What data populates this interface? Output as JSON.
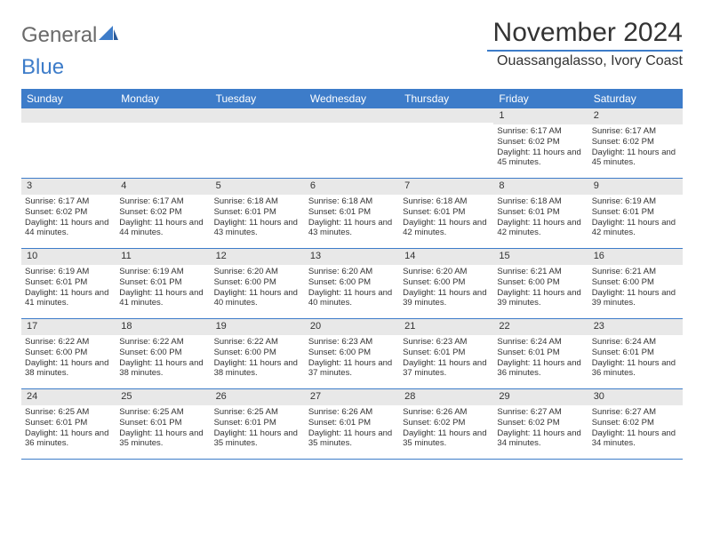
{
  "brand": {
    "part1": "General",
    "part2": "Blue"
  },
  "title": "November 2024",
  "location": "Ouassangalasso, Ivory Coast",
  "colors": {
    "accent": "#3d7cc9",
    "band": "#e8e8e8",
    "text": "#333333",
    "bg": "#ffffff",
    "logo_gray": "#6a6a6a"
  },
  "dayHeaders": [
    "Sunday",
    "Monday",
    "Tuesday",
    "Wednesday",
    "Thursday",
    "Friday",
    "Saturday"
  ],
  "weeks": [
    [
      {
        "n": "",
        "sr": "",
        "ss": "",
        "dl": ""
      },
      {
        "n": "",
        "sr": "",
        "ss": "",
        "dl": ""
      },
      {
        "n": "",
        "sr": "",
        "ss": "",
        "dl": ""
      },
      {
        "n": "",
        "sr": "",
        "ss": "",
        "dl": ""
      },
      {
        "n": "",
        "sr": "",
        "ss": "",
        "dl": ""
      },
      {
        "n": "1",
        "sr": "Sunrise: 6:17 AM",
        "ss": "Sunset: 6:02 PM",
        "dl": "Daylight: 11 hours and 45 minutes."
      },
      {
        "n": "2",
        "sr": "Sunrise: 6:17 AM",
        "ss": "Sunset: 6:02 PM",
        "dl": "Daylight: 11 hours and 45 minutes."
      }
    ],
    [
      {
        "n": "3",
        "sr": "Sunrise: 6:17 AM",
        "ss": "Sunset: 6:02 PM",
        "dl": "Daylight: 11 hours and 44 minutes."
      },
      {
        "n": "4",
        "sr": "Sunrise: 6:17 AM",
        "ss": "Sunset: 6:02 PM",
        "dl": "Daylight: 11 hours and 44 minutes."
      },
      {
        "n": "5",
        "sr": "Sunrise: 6:18 AM",
        "ss": "Sunset: 6:01 PM",
        "dl": "Daylight: 11 hours and 43 minutes."
      },
      {
        "n": "6",
        "sr": "Sunrise: 6:18 AM",
        "ss": "Sunset: 6:01 PM",
        "dl": "Daylight: 11 hours and 43 minutes."
      },
      {
        "n": "7",
        "sr": "Sunrise: 6:18 AM",
        "ss": "Sunset: 6:01 PM",
        "dl": "Daylight: 11 hours and 42 minutes."
      },
      {
        "n": "8",
        "sr": "Sunrise: 6:18 AM",
        "ss": "Sunset: 6:01 PM",
        "dl": "Daylight: 11 hours and 42 minutes."
      },
      {
        "n": "9",
        "sr": "Sunrise: 6:19 AM",
        "ss": "Sunset: 6:01 PM",
        "dl": "Daylight: 11 hours and 42 minutes."
      }
    ],
    [
      {
        "n": "10",
        "sr": "Sunrise: 6:19 AM",
        "ss": "Sunset: 6:01 PM",
        "dl": "Daylight: 11 hours and 41 minutes."
      },
      {
        "n": "11",
        "sr": "Sunrise: 6:19 AM",
        "ss": "Sunset: 6:01 PM",
        "dl": "Daylight: 11 hours and 41 minutes."
      },
      {
        "n": "12",
        "sr": "Sunrise: 6:20 AM",
        "ss": "Sunset: 6:00 PM",
        "dl": "Daylight: 11 hours and 40 minutes."
      },
      {
        "n": "13",
        "sr": "Sunrise: 6:20 AM",
        "ss": "Sunset: 6:00 PM",
        "dl": "Daylight: 11 hours and 40 minutes."
      },
      {
        "n": "14",
        "sr": "Sunrise: 6:20 AM",
        "ss": "Sunset: 6:00 PM",
        "dl": "Daylight: 11 hours and 39 minutes."
      },
      {
        "n": "15",
        "sr": "Sunrise: 6:21 AM",
        "ss": "Sunset: 6:00 PM",
        "dl": "Daylight: 11 hours and 39 minutes."
      },
      {
        "n": "16",
        "sr": "Sunrise: 6:21 AM",
        "ss": "Sunset: 6:00 PM",
        "dl": "Daylight: 11 hours and 39 minutes."
      }
    ],
    [
      {
        "n": "17",
        "sr": "Sunrise: 6:22 AM",
        "ss": "Sunset: 6:00 PM",
        "dl": "Daylight: 11 hours and 38 minutes."
      },
      {
        "n": "18",
        "sr": "Sunrise: 6:22 AM",
        "ss": "Sunset: 6:00 PM",
        "dl": "Daylight: 11 hours and 38 minutes."
      },
      {
        "n": "19",
        "sr": "Sunrise: 6:22 AM",
        "ss": "Sunset: 6:00 PM",
        "dl": "Daylight: 11 hours and 38 minutes."
      },
      {
        "n": "20",
        "sr": "Sunrise: 6:23 AM",
        "ss": "Sunset: 6:00 PM",
        "dl": "Daylight: 11 hours and 37 minutes."
      },
      {
        "n": "21",
        "sr": "Sunrise: 6:23 AM",
        "ss": "Sunset: 6:01 PM",
        "dl": "Daylight: 11 hours and 37 minutes."
      },
      {
        "n": "22",
        "sr": "Sunrise: 6:24 AM",
        "ss": "Sunset: 6:01 PM",
        "dl": "Daylight: 11 hours and 36 minutes."
      },
      {
        "n": "23",
        "sr": "Sunrise: 6:24 AM",
        "ss": "Sunset: 6:01 PM",
        "dl": "Daylight: 11 hours and 36 minutes."
      }
    ],
    [
      {
        "n": "24",
        "sr": "Sunrise: 6:25 AM",
        "ss": "Sunset: 6:01 PM",
        "dl": "Daylight: 11 hours and 36 minutes."
      },
      {
        "n": "25",
        "sr": "Sunrise: 6:25 AM",
        "ss": "Sunset: 6:01 PM",
        "dl": "Daylight: 11 hours and 35 minutes."
      },
      {
        "n": "26",
        "sr": "Sunrise: 6:25 AM",
        "ss": "Sunset: 6:01 PM",
        "dl": "Daylight: 11 hours and 35 minutes."
      },
      {
        "n": "27",
        "sr": "Sunrise: 6:26 AM",
        "ss": "Sunset: 6:01 PM",
        "dl": "Daylight: 11 hours and 35 minutes."
      },
      {
        "n": "28",
        "sr": "Sunrise: 6:26 AM",
        "ss": "Sunset: 6:02 PM",
        "dl": "Daylight: 11 hours and 35 minutes."
      },
      {
        "n": "29",
        "sr": "Sunrise: 6:27 AM",
        "ss": "Sunset: 6:02 PM",
        "dl": "Daylight: 11 hours and 34 minutes."
      },
      {
        "n": "30",
        "sr": "Sunrise: 6:27 AM",
        "ss": "Sunset: 6:02 PM",
        "dl": "Daylight: 11 hours and 34 minutes."
      }
    ]
  ]
}
